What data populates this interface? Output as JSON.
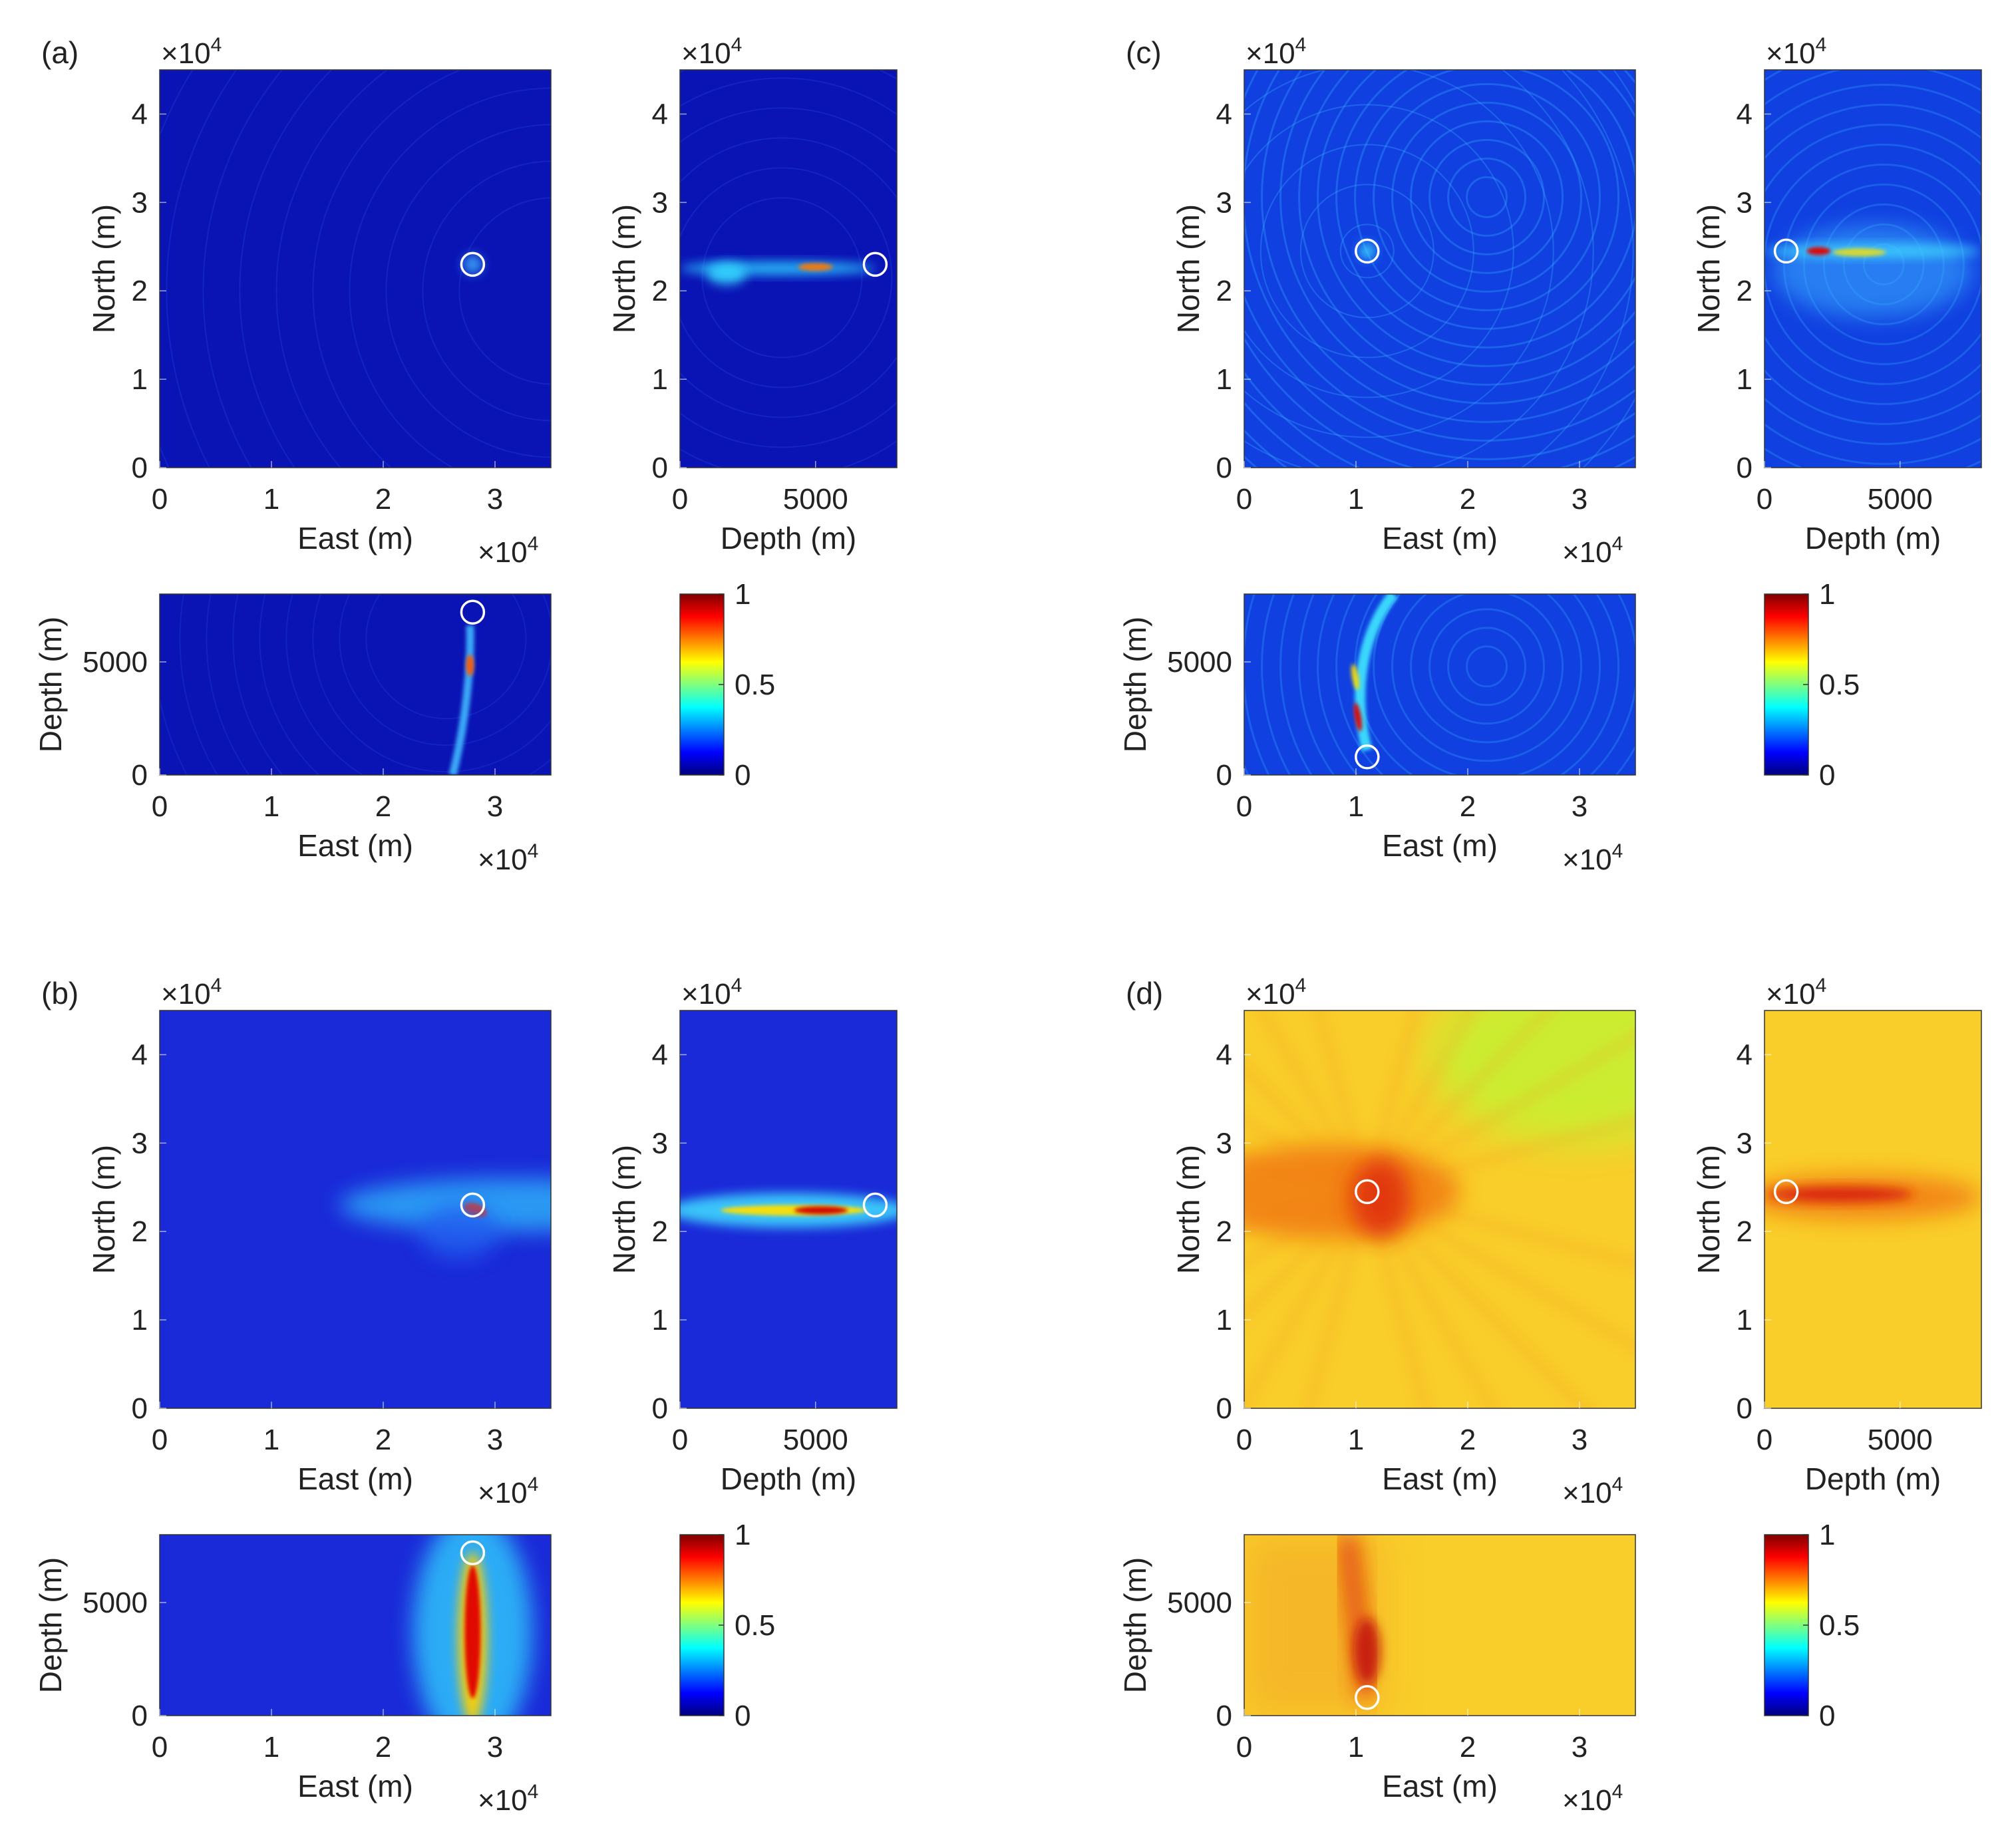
{
  "chart_data": [
    {
      "type": "heatmap",
      "panel_label": "(a)",
      "pattern": "sharp",
      "background": "#0a14b4",
      "views": {
        "map": {
          "xlabel": "East (m)",
          "ylabel": "North (m)",
          "x_ticks": [
            "0",
            "1",
            "2",
            "3"
          ],
          "y_ticks": [
            "0",
            "1",
            "2",
            "3",
            "4"
          ],
          "x_exponent": "4",
          "y_exponent": "4",
          "xlim": [
            0,
            35000
          ],
          "ylim": [
            0,
            45000
          ]
        },
        "north_depth": {
          "xlabel": "Depth (m)",
          "ylabel": "North (m)",
          "x_ticks": [
            "0",
            "5000"
          ],
          "y_ticks": [
            "0",
            "1",
            "2",
            "3",
            "4"
          ],
          "y_exponent": "4",
          "xlim": [
            0,
            8000
          ],
          "ylim": [
            0,
            45000
          ]
        },
        "depth_east": {
          "xlabel": "East (m)",
          "ylabel": "Depth (m)",
          "x_ticks": [
            "0",
            "1",
            "2",
            "3"
          ],
          "y_ticks": [
            "0",
            "5000"
          ],
          "x_exponent": "4",
          "xlim": [
            0,
            35000
          ],
          "ylim": [
            0,
            8000
          ]
        }
      },
      "source": {
        "east": 28000,
        "north": 23000,
        "depth": 7200
      },
      "colorbar": {
        "ticks": [
          "1",
          "0.5",
          "0"
        ],
        "range": [
          0,
          1
        ]
      }
    },
    {
      "type": "heatmap",
      "panel_label": "(b)",
      "pattern": "smooth",
      "background": "#1a2ad8",
      "views": {
        "map": {
          "xlabel": "East (m)",
          "ylabel": "North (m)",
          "x_ticks": [
            "0",
            "1",
            "2",
            "3"
          ],
          "y_ticks": [
            "0",
            "1",
            "2",
            "3",
            "4"
          ],
          "x_exponent": "4",
          "y_exponent": "4",
          "xlim": [
            0,
            35000
          ],
          "ylim": [
            0,
            45000
          ]
        },
        "north_depth": {
          "xlabel": "Depth (m)",
          "ylabel": "North (m)",
          "x_ticks": [
            "0",
            "5000"
          ],
          "y_ticks": [
            "0",
            "1",
            "2",
            "3",
            "4"
          ],
          "y_exponent": "4",
          "xlim": [
            0,
            8000
          ],
          "ylim": [
            0,
            45000
          ]
        },
        "depth_east": {
          "xlabel": "East (m)",
          "ylabel": "Depth (m)",
          "x_ticks": [
            "0",
            "1",
            "2",
            "3"
          ],
          "y_ticks": [
            "0",
            "5000"
          ],
          "x_exponent": "4",
          "xlim": [
            0,
            35000
          ],
          "ylim": [
            0,
            8000
          ]
        }
      },
      "source": {
        "east": 28000,
        "north": 23000,
        "depth": 7200
      },
      "colorbar": {
        "ticks": [
          "1",
          "0.5",
          "0"
        ],
        "range": [
          0,
          1
        ]
      }
    },
    {
      "type": "heatmap",
      "panel_label": "(c)",
      "pattern": "rings",
      "background": "#1040e0",
      "views": {
        "map": {
          "xlabel": "East (m)",
          "ylabel": "North (m)",
          "x_ticks": [
            "0",
            "1",
            "2",
            "3"
          ],
          "y_ticks": [
            "0",
            "1",
            "2",
            "3",
            "4"
          ],
          "x_exponent": "4",
          "y_exponent": "4",
          "xlim": [
            0,
            35000
          ],
          "ylim": [
            0,
            45000
          ]
        },
        "north_depth": {
          "xlabel": "Depth (m)",
          "ylabel": "North (m)",
          "x_ticks": [
            "0",
            "5000"
          ],
          "y_ticks": [
            "0",
            "1",
            "2",
            "3",
            "4"
          ],
          "y_exponent": "4",
          "xlim": [
            0,
            8000
          ],
          "ylim": [
            0,
            45000
          ]
        },
        "depth_east": {
          "xlabel": "East (m)",
          "ylabel": "Depth (m)",
          "x_ticks": [
            "0",
            "1",
            "2",
            "3"
          ],
          "y_ticks": [
            "0",
            "5000"
          ],
          "x_exponent": "4",
          "xlim": [
            0,
            35000
          ],
          "ylim": [
            0,
            8000
          ]
        }
      },
      "source": {
        "east": 11000,
        "north": 24500,
        "depth": 800
      },
      "colorbar": {
        "ticks": [
          "1",
          "0.5",
          "0"
        ],
        "range": [
          0,
          1
        ]
      }
    },
    {
      "type": "heatmap",
      "panel_label": "(d)",
      "pattern": "warm",
      "background": "#f9cd2a",
      "views": {
        "map": {
          "xlabel": "East (m)",
          "ylabel": "North (m)",
          "x_ticks": [
            "0",
            "1",
            "2",
            "3"
          ],
          "y_ticks": [
            "0",
            "1",
            "2",
            "3",
            "4"
          ],
          "x_exponent": "4",
          "y_exponent": "4",
          "xlim": [
            0,
            35000
          ],
          "ylim": [
            0,
            45000
          ]
        },
        "north_depth": {
          "xlabel": "Depth (m)",
          "ylabel": "North (m)",
          "x_ticks": [
            "0",
            "5000"
          ],
          "y_ticks": [
            "0",
            "1",
            "2",
            "3",
            "4"
          ],
          "y_exponent": "4",
          "xlim": [
            0,
            8000
          ],
          "ylim": [
            0,
            45000
          ]
        },
        "depth_east": {
          "xlabel": "East (m)",
          "ylabel": "Depth (m)",
          "x_ticks": [
            "0",
            "1",
            "2",
            "3"
          ],
          "y_ticks": [
            "0",
            "5000"
          ],
          "x_exponent": "4",
          "xlim": [
            0,
            35000
          ],
          "ylim": [
            0,
            8000
          ]
        }
      },
      "source": {
        "east": 11000,
        "north": 24500,
        "depth": 800
      },
      "colorbar": {
        "ticks": [
          "1",
          "0.5",
          "0"
        ],
        "range": [
          0,
          1
        ]
      }
    }
  ]
}
